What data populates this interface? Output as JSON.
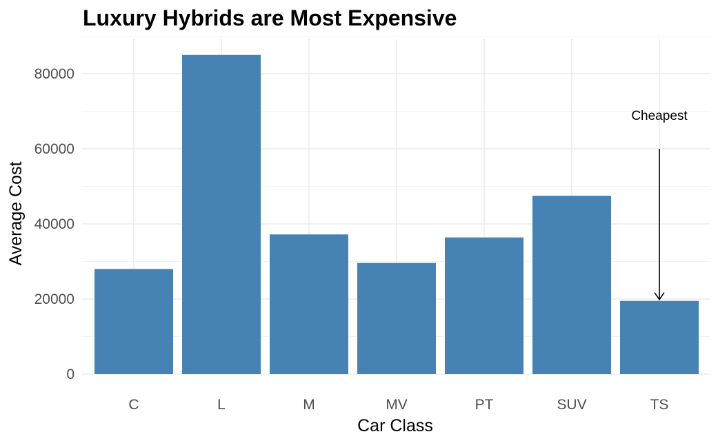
{
  "chart_data": {
    "type": "bar",
    "title": "Luxury Hybrids are Most Expensive",
    "xlabel": "Car Class",
    "ylabel": "Average Cost",
    "categories": [
      "C",
      "L",
      "M",
      "MV",
      "PT",
      "SUV",
      "TS"
    ],
    "values": [
      28000,
      85000,
      37200,
      29600,
      36400,
      47500,
      19500
    ],
    "ylim": [
      0,
      90000
    ],
    "yticks": [
      0,
      20000,
      40000,
      60000,
      80000
    ],
    "ytick_labels": [
      "0",
      "20000",
      "40000",
      "60000",
      "80000"
    ],
    "bar_color": "#4682b4",
    "grid": true,
    "legend": "none",
    "annotations": [
      {
        "text": "Cheapest",
        "category": "TS",
        "text_y": 69000,
        "arrow_from_y": 60000,
        "arrow_to_y": 19500
      }
    ]
  }
}
